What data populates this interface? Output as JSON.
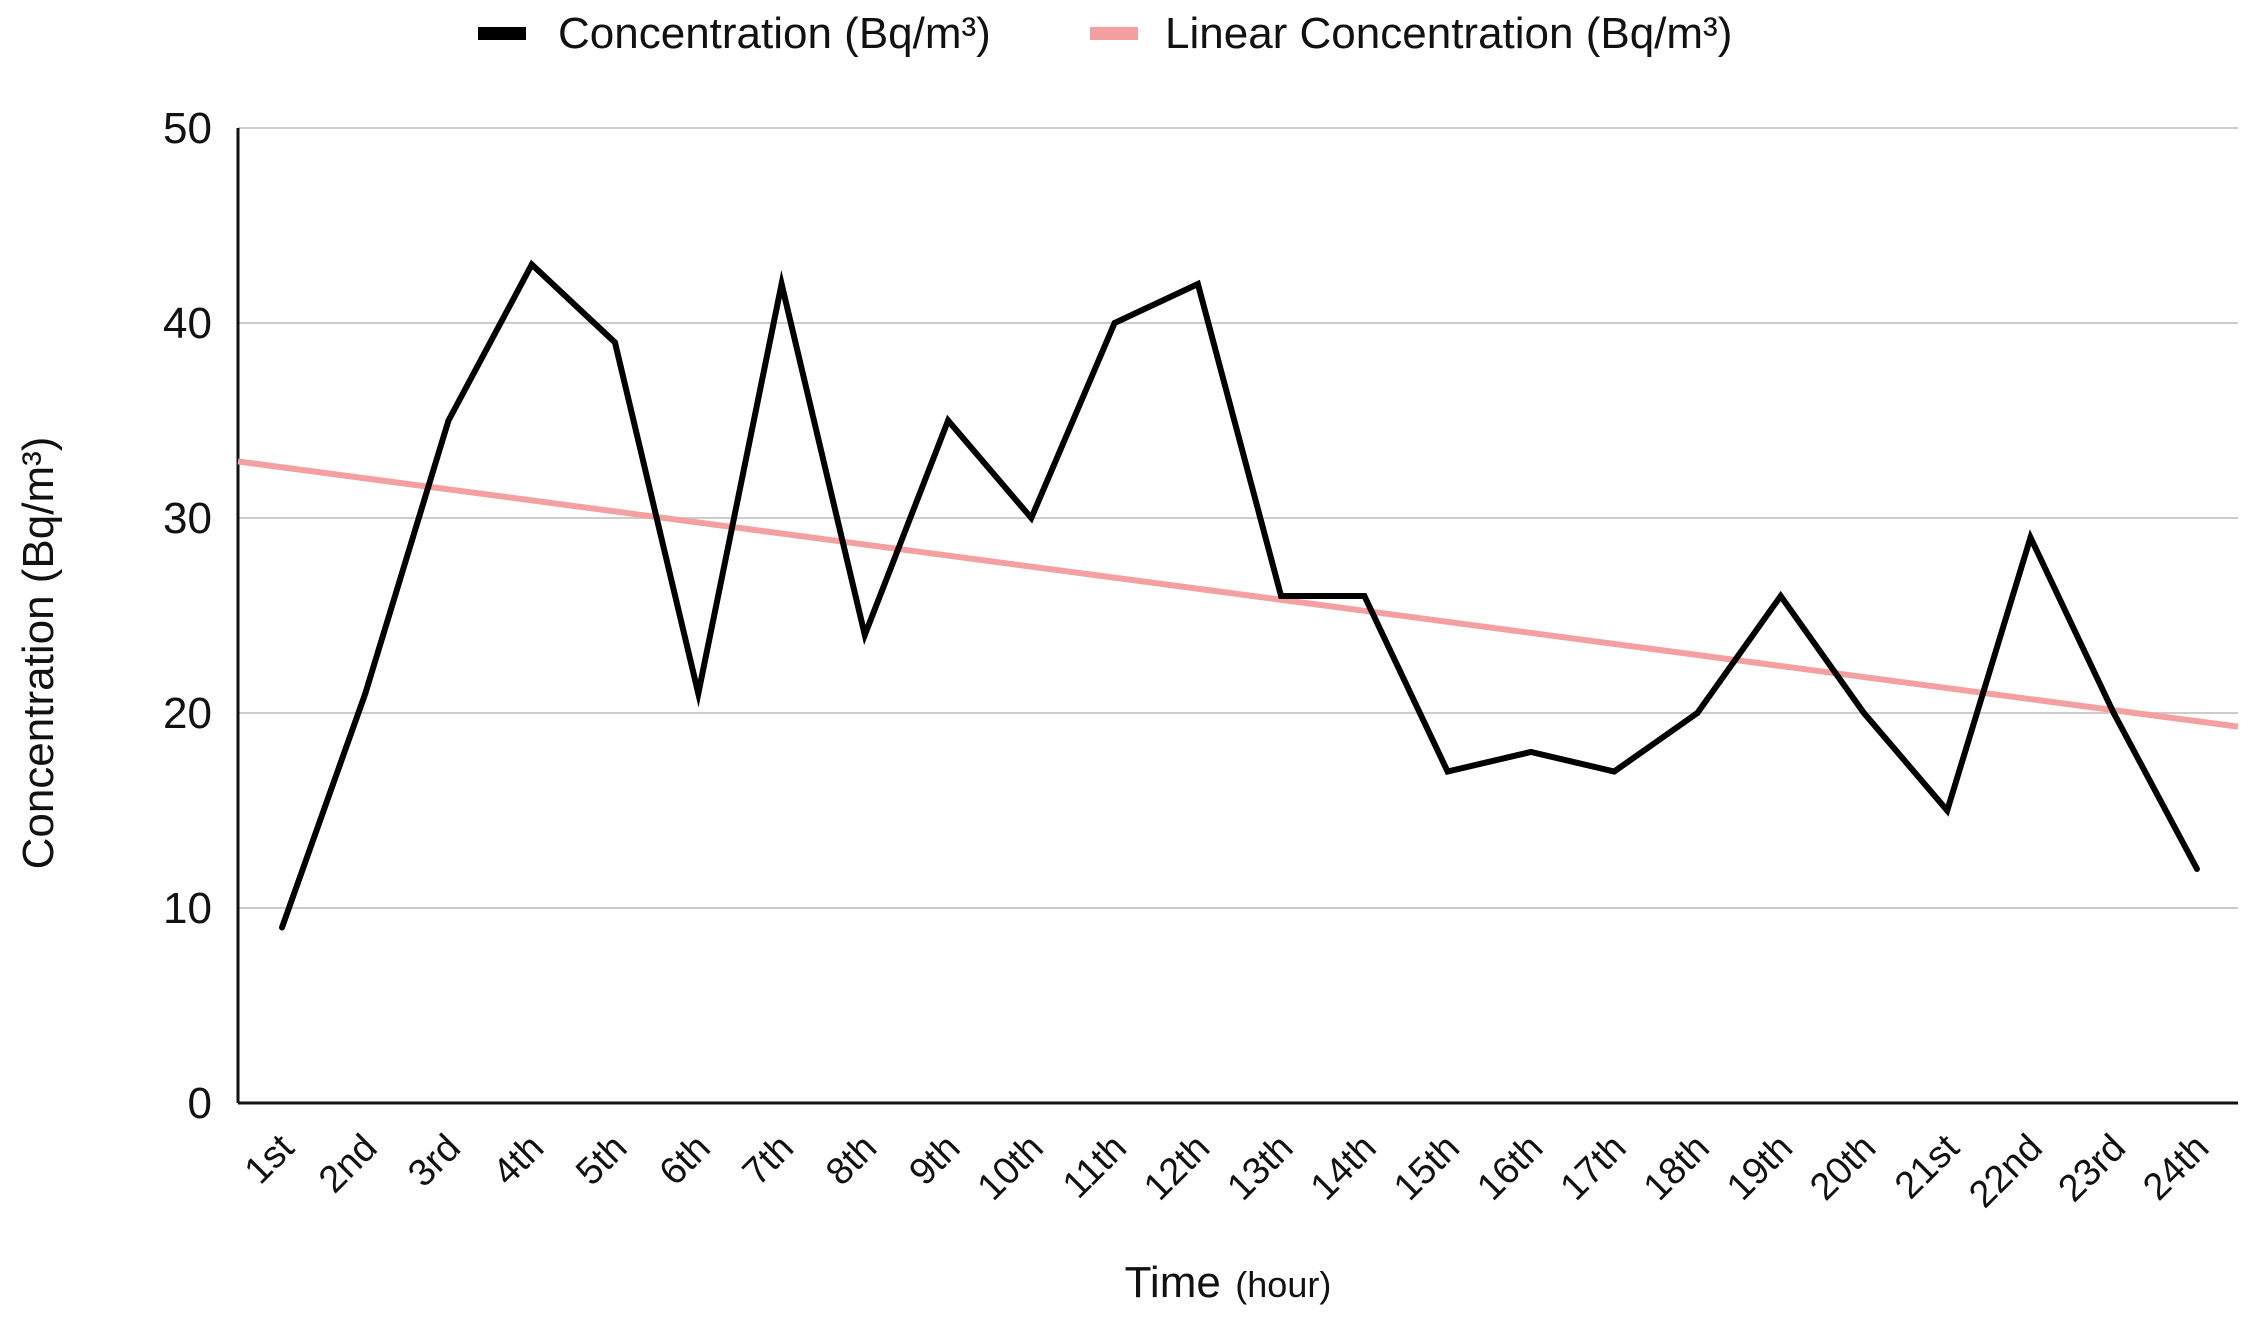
{
  "chart_data": {
    "type": "line",
    "title": "",
    "categories": [
      "1st",
      "2nd",
      "3rd",
      "4th",
      "5th",
      "6th",
      "7th",
      "8th",
      "9th",
      "10th",
      "11th",
      "12th",
      "13th",
      "14th",
      "15th",
      "16th",
      "17th",
      "18th",
      "19th",
      "20th",
      "21st",
      "22nd",
      "23rd",
      "24th"
    ],
    "series": [
      {
        "name": "Concentration (Bq/m³)",
        "color": "#000000",
        "values": [
          9,
          21,
          35,
          43,
          39,
          21,
          42,
          24,
          35,
          30,
          40,
          42,
          26,
          26,
          17,
          18,
          17,
          20,
          26,
          20,
          15,
          29,
          20,
          12
        ]
      },
      {
        "name": "Linear Concentration (Bq/m³)",
        "color": "#f4a0a0",
        "trend": true,
        "start_value": 32.9,
        "end_value": 19.3
      }
    ],
    "xlabel_main": "Time",
    "xlabel_unit": "(hour)",
    "ylabel": "Concentration (Bq/m³)",
    "ylim": [
      0,
      50
    ],
    "yticks": [
      0,
      10,
      20,
      30,
      40,
      50
    ],
    "grid": true,
    "legend_position": "top"
  }
}
